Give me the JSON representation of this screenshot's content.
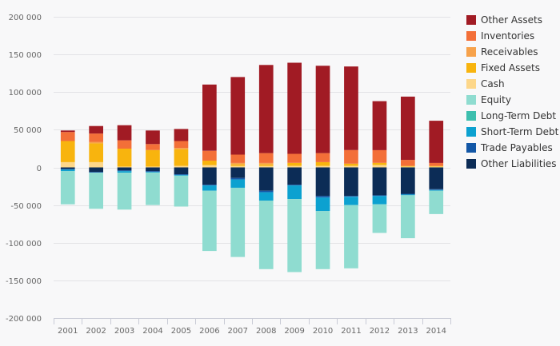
{
  "chart_data": {
    "type": "bar",
    "stacked": true,
    "categories": [
      "2001",
      "2002",
      "2003",
      "2004",
      "2005",
      "2006",
      "2007",
      "2008",
      "2009",
      "2010",
      "2011",
      "2012",
      "2013",
      "2014"
    ],
    "ylim": [
      -200000,
      200000
    ],
    "yticks": [
      200000,
      150000,
      100000,
      50000,
      0,
      -50000,
      -100000,
      -150000,
      -200000
    ],
    "ytick_labels": [
      "200 000",
      "150 000",
      "100 000",
      "50 000",
      "0",
      "-50 000",
      "-100 000",
      "-150 000",
      "-200 000"
    ],
    "grid": true,
    "legend_position": "right",
    "series": [
      {
        "name": "Other Assets",
        "color": "#a11b24",
        "values": [
          2000,
          10000,
          20000,
          18000,
          16000,
          88000,
          103000,
          117000,
          121000,
          116000,
          111000,
          65000,
          84000,
          56000
        ]
      },
      {
        "name": "Inventories",
        "color": "#f36f38",
        "values": [
          12000,
          11000,
          11000,
          8000,
          9000,
          13000,
          11000,
          13000,
          12000,
          12000,
          18000,
          17000,
          8000,
          4000
        ]
      },
      {
        "name": "Receivables",
        "color": "#f7a24b",
        "values": [
          0,
          2000,
          0,
          0,
          2000,
          0,
          2000,
          2000,
          0,
          0,
          0,
          0,
          0,
          0
        ]
      },
      {
        "name": "Fixed Assets",
        "color": "#f8b40e",
        "values": [
          28000,
          25000,
          24000,
          22000,
          22000,
          6000,
          2000,
          2000,
          4000,
          5000,
          3000,
          3000,
          1000,
          1000
        ]
      },
      {
        "name": "Cash",
        "color": "#fdd78a",
        "values": [
          7000,
          7000,
          1000,
          1000,
          2000,
          3000,
          2000,
          2000,
          2000,
          2000,
          2000,
          3000,
          1000,
          1000
        ]
      },
      {
        "name": "Equity",
        "color": "#8fdcd0",
        "values": [
          -44000,
          -48000,
          -49000,
          -43000,
          -41000,
          -80000,
          -92000,
          -91000,
          -97000,
          -77000,
          -84000,
          -38000,
          -57000,
          -31000
        ]
      },
      {
        "name": "Long-Term Debt",
        "color": "#3dbfae",
        "values": [
          0,
          0,
          0,
          0,
          0,
          0,
          0,
          0,
          0,
          0,
          0,
          0,
          0,
          0
        ]
      },
      {
        "name": "Short-Term Debt",
        "color": "#0ca1d0",
        "values": [
          -2000,
          0,
          -2000,
          -1000,
          -1000,
          -7000,
          -11000,
          -11000,
          -18000,
          -18000,
          -11000,
          -11000,
          -1000,
          -1000
        ]
      },
      {
        "name": "Trade Payables",
        "color": "#1357a6",
        "values": [
          -1000,
          -1000,
          -1000,
          -1000,
          -1000,
          -1000,
          -2000,
          -2000,
          -1000,
          -2000,
          -1000,
          -1000,
          -1000,
          -1000
        ]
      },
      {
        "name": "Other Liabilities",
        "color": "#0c2c56",
        "values": [
          -2000,
          -6000,
          -4000,
          -5000,
          -9000,
          -23000,
          -14000,
          -31000,
          -23000,
          -38000,
          -38000,
          -37000,
          -35000,
          -29000
        ]
      }
    ]
  }
}
